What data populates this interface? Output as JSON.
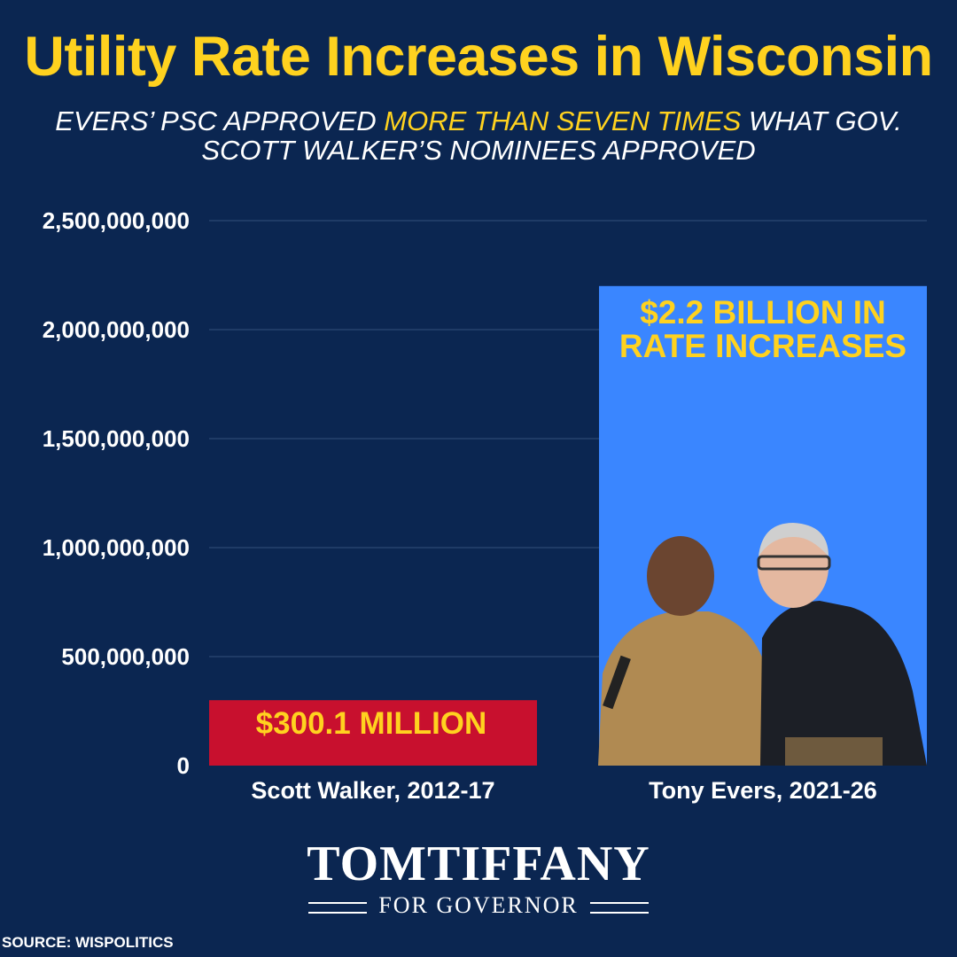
{
  "title": "Utility Rate Increases in Wisconsin",
  "subtitle": {
    "part1": "EVERS’ PSC APPROVED ",
    "highlight": "MORE THAN SEVEN TIMES",
    "part2": " WHAT GOV. SCOTT WALKER’S NOMINEES APPROVED"
  },
  "chart_data": {
    "type": "bar",
    "categories": [
      "Scott Walker, 2012-17",
      "Tony Evers, 2021-26"
    ],
    "values": [
      300100000,
      2200000000
    ],
    "bar_labels": [
      "$300.1 MILLION",
      "$2.2 BILLION IN RATE INCREASES"
    ],
    "bar_colors": [
      "#c8102e",
      "#3a86ff"
    ],
    "ylim": [
      0,
      2500000000
    ],
    "yticks": [
      0,
      500000000,
      1000000000,
      1500000000,
      2000000000,
      2500000000
    ],
    "ytick_labels": [
      "0",
      "500,000,000",
      "1,000,000,000",
      "1,500,000,000",
      "2,000,000,000",
      "2,500,000,000"
    ],
    "grid": true,
    "legend": "none"
  },
  "logo": {
    "name": "TOMTIFFANY",
    "tagline": "FOR GOVERNOR"
  },
  "source": "SOURCE: WISPOLITICS",
  "colors": {
    "background": "#0b2651",
    "accent": "#ffd21f",
    "walker_bar": "#c8102e",
    "evers_bar": "#3a86ff"
  }
}
